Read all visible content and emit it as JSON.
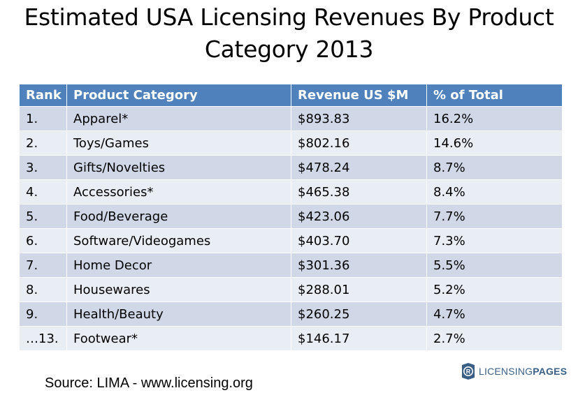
{
  "title": {
    "line1": "Estimated USA Licensing Revenues By Product",
    "line2": "Category 2013"
  },
  "chart_data": {
    "type": "table",
    "columns": [
      "Rank",
      "Product Category",
      "Revenue US $M",
      "% of Total"
    ],
    "rows": [
      [
        "1.",
        "Apparel*",
        "$893.83",
        "16.2%"
      ],
      [
        "2.",
        "Toys/Games",
        "$802.16",
        "14.6%"
      ],
      [
        "3.",
        "Gifts/Novelties",
        "$478.24",
        "8.7%"
      ],
      [
        "4.",
        "Accessories*",
        "$465.38",
        "8.4%"
      ],
      [
        "5.",
        "Food/Beverage",
        "$423.06",
        "7.7%"
      ],
      [
        "6.",
        "Software/Videogames",
        "$403.70",
        "7.3%"
      ],
      [
        "7.",
        "Home Decor",
        "$301.36",
        "5.5%"
      ],
      [
        "8.",
        "Housewares",
        "$288.01",
        "5.2%"
      ],
      [
        "9.",
        "Health/Beauty",
        "$260.25",
        "4.7%"
      ],
      [
        "…13.",
        "Footwear*",
        "$146.17",
        "2.7%"
      ]
    ]
  },
  "source": "Source: LIMA - www.licensing.org",
  "logo": {
    "part1": "LICENSING",
    "part2": "PAGES"
  },
  "colors": {
    "header_bg": "#4f81bd",
    "row_odd": "#d0d8e8",
    "row_even": "#e9edf4",
    "logo": "#3a5f86"
  }
}
